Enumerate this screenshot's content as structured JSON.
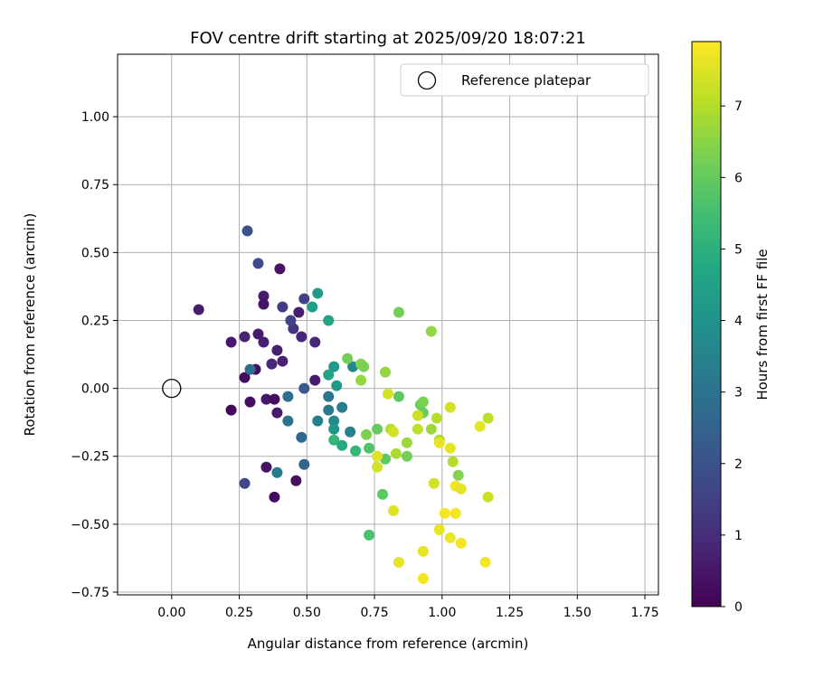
{
  "chart_data": {
    "type": "scatter",
    "title": "FOV centre drift starting at 2025/09/20 18:07:21",
    "xlabel": "Angular distance from reference (arcmin)",
    "ylabel": "Rotation from reference (arcmin)",
    "xlim": [
      -0.2,
      1.8
    ],
    "ylim": [
      -0.76,
      1.23
    ],
    "x_ticks": [
      "0.00",
      "0.25",
      "0.50",
      "0.75",
      "1.00",
      "1.25",
      "1.50",
      "1.75"
    ],
    "x_tick_values": [
      0,
      0.25,
      0.5,
      0.75,
      1.0,
      1.25,
      1.5,
      1.75
    ],
    "y_ticks": [
      "−0.75",
      "−0.50",
      "−0.25",
      "0.00",
      "0.25",
      "0.50",
      "0.75",
      "1.00"
    ],
    "y_tick_values": [
      -0.75,
      -0.5,
      -0.25,
      0,
      0.25,
      0.5,
      0.75,
      1.0
    ],
    "grid": true,
    "legend": {
      "position": "top-right",
      "label": "Reference platepar"
    },
    "reference_point": {
      "x": 0.0,
      "y": 0.0
    },
    "colorbar": {
      "label": "Hours from first FF file",
      "min": 0,
      "max": 7.9,
      "ticks": [
        "0",
        "1",
        "2",
        "3",
        "4",
        "5",
        "6",
        "7"
      ],
      "tick_values": [
        0,
        1,
        2,
        3,
        4,
        5,
        6,
        7
      ],
      "colormap": "viridis"
    },
    "points": [
      {
        "x": 0.1,
        "y": 0.29,
        "t": 0.6
      },
      {
        "x": 0.22,
        "y": 0.17,
        "t": 0.5
      },
      {
        "x": 0.22,
        "y": -0.08,
        "t": 0.1
      },
      {
        "x": 0.27,
        "y": 0.19,
        "t": 0.8
      },
      {
        "x": 0.27,
        "y": 0.04,
        "t": 0.2
      },
      {
        "x": 0.29,
        "y": -0.05,
        "t": 0.3
      },
      {
        "x": 0.31,
        "y": 0.07,
        "t": 0.3
      },
      {
        "x": 0.32,
        "y": 0.2,
        "t": 0.6
      },
      {
        "x": 0.34,
        "y": 0.34,
        "t": 0.6
      },
      {
        "x": 0.34,
        "y": 0.31,
        "t": 0.4
      },
      {
        "x": 0.34,
        "y": 0.17,
        "t": 0.7
      },
      {
        "x": 0.35,
        "y": -0.04,
        "t": 0.5
      },
      {
        "x": 0.37,
        "y": 0.09,
        "t": 0.9
      },
      {
        "x": 0.39,
        "y": 0.14,
        "t": 0.7
      },
      {
        "x": 0.38,
        "y": -0.04,
        "t": 0.3
      },
      {
        "x": 0.39,
        "y": -0.09,
        "t": 0.6
      },
      {
        "x": 0.4,
        "y": 0.44,
        "t": 0.4
      },
      {
        "x": 0.41,
        "y": 0.1,
        "t": 0.7
      },
      {
        "x": 0.35,
        "y": -0.29,
        "t": 0.4
      },
      {
        "x": 0.38,
        "y": -0.4,
        "t": 0.2
      },
      {
        "x": 0.46,
        "y": -0.34,
        "t": 0.3
      },
      {
        "x": 0.47,
        "y": 0.28,
        "t": 0.7
      },
      {
        "x": 0.48,
        "y": 0.19,
        "t": 0.9
      },
      {
        "x": 0.45,
        "y": 0.22,
        "t": 1.2
      },
      {
        "x": 0.53,
        "y": 0.17,
        "t": 0.9
      },
      {
        "x": 0.53,
        "y": 0.03,
        "t": 0.6
      },
      {
        "x": 0.28,
        "y": 0.58,
        "t": 2.0
      },
      {
        "x": 0.32,
        "y": 0.46,
        "t": 1.8
      },
      {
        "x": 0.41,
        "y": 0.3,
        "t": 1.4
      },
      {
        "x": 0.44,
        "y": 0.25,
        "t": 1.6
      },
      {
        "x": 0.49,
        "y": 0.33,
        "t": 1.5
      },
      {
        "x": 0.27,
        "y": -0.35,
        "t": 1.7
      },
      {
        "x": 0.29,
        "y": 0.07,
        "t": 2.9
      },
      {
        "x": 0.49,
        "y": 0.0,
        "t": 2.2
      },
      {
        "x": 0.43,
        "y": -0.03,
        "t": 2.9
      },
      {
        "x": 0.43,
        "y": -0.12,
        "t": 3.0
      },
      {
        "x": 0.39,
        "y": -0.31,
        "t": 3.3
      },
      {
        "x": 0.48,
        "y": -0.18,
        "t": 2.7
      },
      {
        "x": 0.49,
        "y": -0.28,
        "t": 2.6
      },
      {
        "x": 0.54,
        "y": 0.35,
        "t": 4.3
      },
      {
        "x": 0.52,
        "y": 0.3,
        "t": 4.4
      },
      {
        "x": 0.58,
        "y": 0.25,
        "t": 4.6
      },
      {
        "x": 0.54,
        "y": -0.12,
        "t": 3.4
      },
      {
        "x": 0.58,
        "y": -0.03,
        "t": 3.0
      },
      {
        "x": 0.58,
        "y": -0.08,
        "t": 3.2
      },
      {
        "x": 0.6,
        "y": -0.12,
        "t": 3.7
      },
      {
        "x": 0.6,
        "y": -0.15,
        "t": 4.1
      },
      {
        "x": 0.6,
        "y": 0.08,
        "t": 4.2
      },
      {
        "x": 0.58,
        "y": 0.05,
        "t": 4.6
      },
      {
        "x": 0.61,
        "y": 0.01,
        "t": 4.2
      },
      {
        "x": 0.63,
        "y": -0.07,
        "t": 3.3
      },
      {
        "x": 0.66,
        "y": -0.16,
        "t": 3.4
      },
      {
        "x": 0.6,
        "y": -0.19,
        "t": 5.2
      },
      {
        "x": 0.63,
        "y": -0.21,
        "t": 4.8
      },
      {
        "x": 0.68,
        "y": -0.23,
        "t": 5.2
      },
      {
        "x": 0.67,
        "y": 0.08,
        "t": 3.6
      },
      {
        "x": 0.65,
        "y": 0.11,
        "t": 6.2
      },
      {
        "x": 0.7,
        "y": 0.09,
        "t": 6.4
      },
      {
        "x": 0.71,
        "y": 0.08,
        "t": 6.3
      },
      {
        "x": 0.7,
        "y": 0.03,
        "t": 6.6
      },
      {
        "x": 0.73,
        "y": -0.22,
        "t": 5.7
      },
      {
        "x": 0.72,
        "y": -0.17,
        "t": 6.3
      },
      {
        "x": 0.76,
        "y": -0.15,
        "t": 6.0
      },
      {
        "x": 0.79,
        "y": -0.26,
        "t": 5.9
      },
      {
        "x": 0.79,
        "y": 0.06,
        "t": 6.6
      },
      {
        "x": 0.84,
        "y": 0.28,
        "t": 6.2
      },
      {
        "x": 0.84,
        "y": -0.03,
        "t": 5.9
      },
      {
        "x": 0.73,
        "y": -0.54,
        "t": 5.6
      },
      {
        "x": 0.78,
        "y": -0.39,
        "t": 5.9
      },
      {
        "x": 0.87,
        "y": -0.25,
        "t": 6.2
      },
      {
        "x": 0.87,
        "y": -0.2,
        "t": 6.7
      },
      {
        "x": 0.92,
        "y": -0.06,
        "t": 6.1
      },
      {
        "x": 0.93,
        "y": -0.05,
        "t": 6.3
      },
      {
        "x": 0.93,
        "y": -0.09,
        "t": 6.1
      },
      {
        "x": 0.96,
        "y": 0.21,
        "t": 6.6
      },
      {
        "x": 0.96,
        "y": -0.15,
        "t": 6.7
      },
      {
        "x": 0.98,
        "y": -0.11,
        "t": 7.0
      },
      {
        "x": 0.99,
        "y": -0.19,
        "t": 6.9
      },
      {
        "x": 0.8,
        "y": -0.02,
        "t": 7.4
      },
      {
        "x": 0.81,
        "y": -0.15,
        "t": 7.0
      },
      {
        "x": 0.82,
        "y": -0.16,
        "t": 7.4
      },
      {
        "x": 0.83,
        "y": -0.24,
        "t": 6.9
      },
      {
        "x": 0.76,
        "y": -0.25,
        "t": 7.5
      },
      {
        "x": 0.76,
        "y": -0.29,
        "t": 7.4
      },
      {
        "x": 0.82,
        "y": -0.45,
        "t": 7.5
      },
      {
        "x": 0.91,
        "y": -0.1,
        "t": 7.3
      },
      {
        "x": 0.91,
        "y": -0.15,
        "t": 7.1
      },
      {
        "x": 0.93,
        "y": -0.6,
        "t": 7.6
      },
      {
        "x": 0.84,
        "y": -0.64,
        "t": 7.6
      },
      {
        "x": 0.93,
        "y": -0.7,
        "t": 7.8
      },
      {
        "x": 0.97,
        "y": -0.35,
        "t": 7.4
      },
      {
        "x": 0.99,
        "y": -0.2,
        "t": 7.6
      },
      {
        "x": 0.99,
        "y": -0.52,
        "t": 7.6
      },
      {
        "x": 1.01,
        "y": -0.46,
        "t": 7.8
      },
      {
        "x": 1.03,
        "y": -0.55,
        "t": 7.7
      },
      {
        "x": 1.03,
        "y": -0.22,
        "t": 7.6
      },
      {
        "x": 1.03,
        "y": -0.07,
        "t": 7.4
      },
      {
        "x": 1.04,
        "y": -0.27,
        "t": 7.0
      },
      {
        "x": 1.05,
        "y": -0.36,
        "t": 7.7
      },
      {
        "x": 1.05,
        "y": -0.46,
        "t": 7.8
      },
      {
        "x": 1.06,
        "y": -0.32,
        "t": 6.4
      },
      {
        "x": 1.07,
        "y": -0.37,
        "t": 7.6
      },
      {
        "x": 1.07,
        "y": -0.57,
        "t": 7.8
      },
      {
        "x": 1.14,
        "y": -0.14,
        "t": 7.6
      },
      {
        "x": 1.16,
        "y": -0.64,
        "t": 7.8
      },
      {
        "x": 1.17,
        "y": -0.11,
        "t": 7.1
      },
      {
        "x": 1.17,
        "y": -0.4,
        "t": 7.3
      }
    ]
  }
}
